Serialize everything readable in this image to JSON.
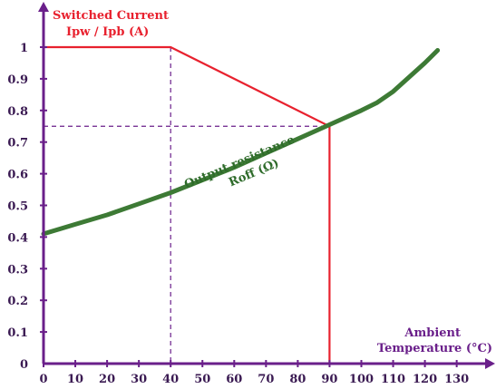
{
  "chart_data": {
    "type": "line",
    "title": "",
    "y_axis_title_lines": [
      "Switched Current",
      "Ipw / Ipb (A)"
    ],
    "x_axis_title_lines": [
      "Ambient",
      "Temperature (°C)"
    ],
    "xlim": [
      0,
      135
    ],
    "ylim": [
      0,
      1.05
    ],
    "x_ticks": [
      0,
      10,
      20,
      30,
      40,
      50,
      60,
      70,
      80,
      90,
      100,
      110,
      120,
      130
    ],
    "y_ticks": [
      0,
      0.1,
      0.2,
      0.3,
      0.4,
      0.5,
      0.6,
      0.7,
      0.8,
      0.9,
      1
    ],
    "x_tick_labels": [
      "0",
      "10",
      "20",
      "30",
      "40",
      "50",
      "60",
      "70",
      "80",
      "90",
      "100",
      "110",
      "120",
      "130"
    ],
    "y_tick_labels": [
      "0",
      "0.1",
      "0.2",
      "0.3",
      "0.4",
      "0.5",
      "0.6",
      "0.7",
      "0.8",
      "0.9",
      "1"
    ],
    "series": [
      {
        "name": "",
        "color": "#e8212e",
        "x": [
          0,
          40,
          90,
          90
        ],
        "y": [
          1.0,
          1.0,
          0.75,
          0.0
        ]
      },
      {
        "name": "",
        "color": "#3d7a35",
        "x": [
          0,
          10,
          20,
          30,
          40,
          50,
          60,
          70,
          80,
          90,
          100,
          105,
          110,
          120,
          124
        ],
        "y": [
          0.41,
          0.44,
          0.47,
          0.505,
          0.54,
          0.58,
          0.62,
          0.665,
          0.71,
          0.755,
          0.8,
          0.825,
          0.86,
          0.95,
          0.99
        ]
      }
    ],
    "reference_lines": [
      {
        "x": [
          0,
          90
        ],
        "y": [
          0.75,
          0.75
        ]
      },
      {
        "x": [
          40,
          40
        ],
        "y": [
          1.0,
          0.0
        ]
      }
    ],
    "annotations": [
      {
        "text_lines": [
          "Output resistance",
          "Roff (Ω)"
        ],
        "x": 72,
        "y": 0.585
      }
    ],
    "colors": {
      "axis": "#6a1f8a",
      "tick_text": "#3a1a52",
      "switched_current": "#e8212e",
      "output_resistance": "#3d7a35",
      "guide": "#6a1f8a"
    }
  }
}
